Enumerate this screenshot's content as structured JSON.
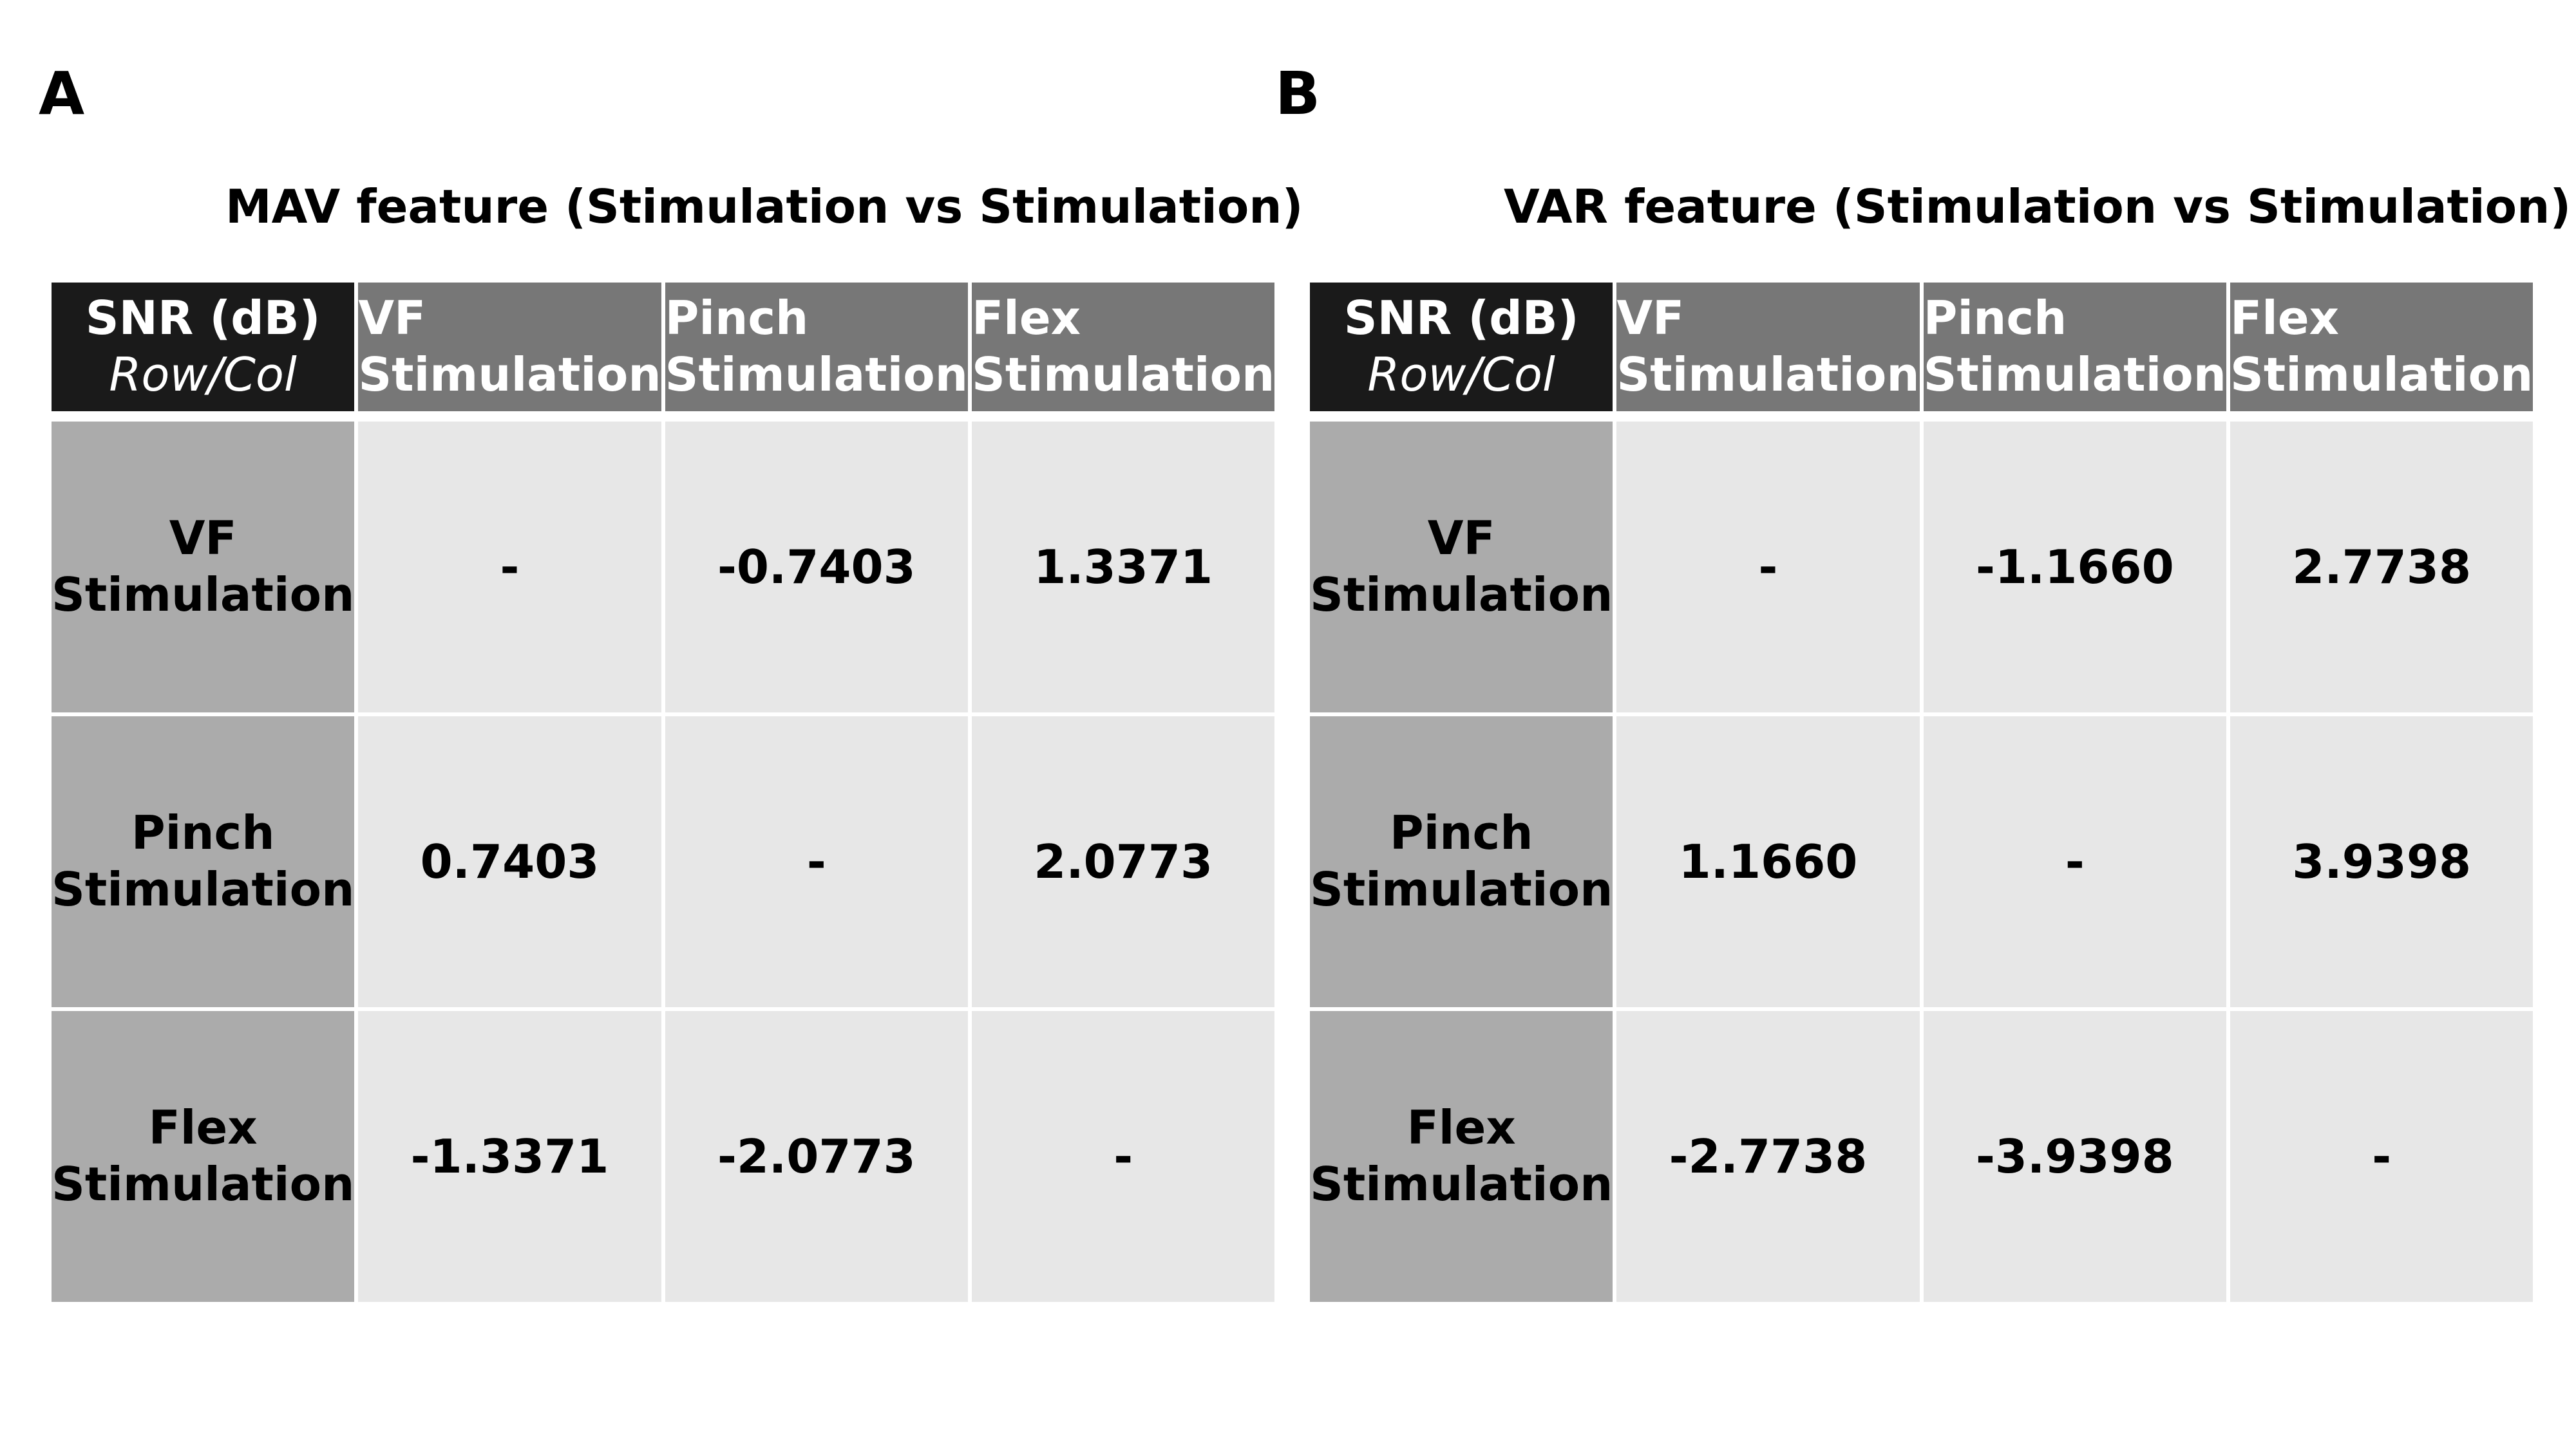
{
  "panels": [
    {
      "letter": "A",
      "title": "MAV feature (Stimulation vs Stimulation)",
      "corner": {
        "line1": "SNR (dB)",
        "line2": "Row/Col"
      },
      "columns": [
        {
          "line1": "VF",
          "line2": "Stimulation"
        },
        {
          "line1": "Pinch",
          "line2": "Stimulation"
        },
        {
          "line1": "Flex",
          "line2": "Stimulation"
        }
      ],
      "rows": [
        {
          "line1": "VF",
          "line2": "Stimulation",
          "values": [
            "-",
            "-0.7403",
            "1.3371"
          ]
        },
        {
          "line1": "Pinch",
          "line2": "Stimulation",
          "values": [
            "0.7403",
            "-",
            "2.0773"
          ]
        },
        {
          "line1": "Flex",
          "line2": "Stimulation",
          "values": [
            "-1.3371",
            "-2.0773",
            "-"
          ]
        }
      ]
    },
    {
      "letter": "B",
      "title": "VAR feature (Stimulation vs Stimulation)",
      "corner": {
        "line1": "SNR (dB)",
        "line2": "Row/Col"
      },
      "columns": [
        {
          "line1": "VF",
          "line2": "Stimulation"
        },
        {
          "line1": "Pinch",
          "line2": "Stimulation"
        },
        {
          "line1": "Flex",
          "line2": "Stimulation"
        }
      ],
      "rows": [
        {
          "line1": "VF",
          "line2": "Stimulation",
          "values": [
            "-",
            "-1.1660",
            "2.7738"
          ]
        },
        {
          "line1": "Pinch",
          "line2": "Stimulation",
          "values": [
            "1.1660",
            "-",
            "3.9398"
          ]
        },
        {
          "line1": "Flex",
          "line2": "Stimulation",
          "values": [
            "-2.7738",
            "-3.9398",
            "-"
          ]
        }
      ]
    }
  ]
}
